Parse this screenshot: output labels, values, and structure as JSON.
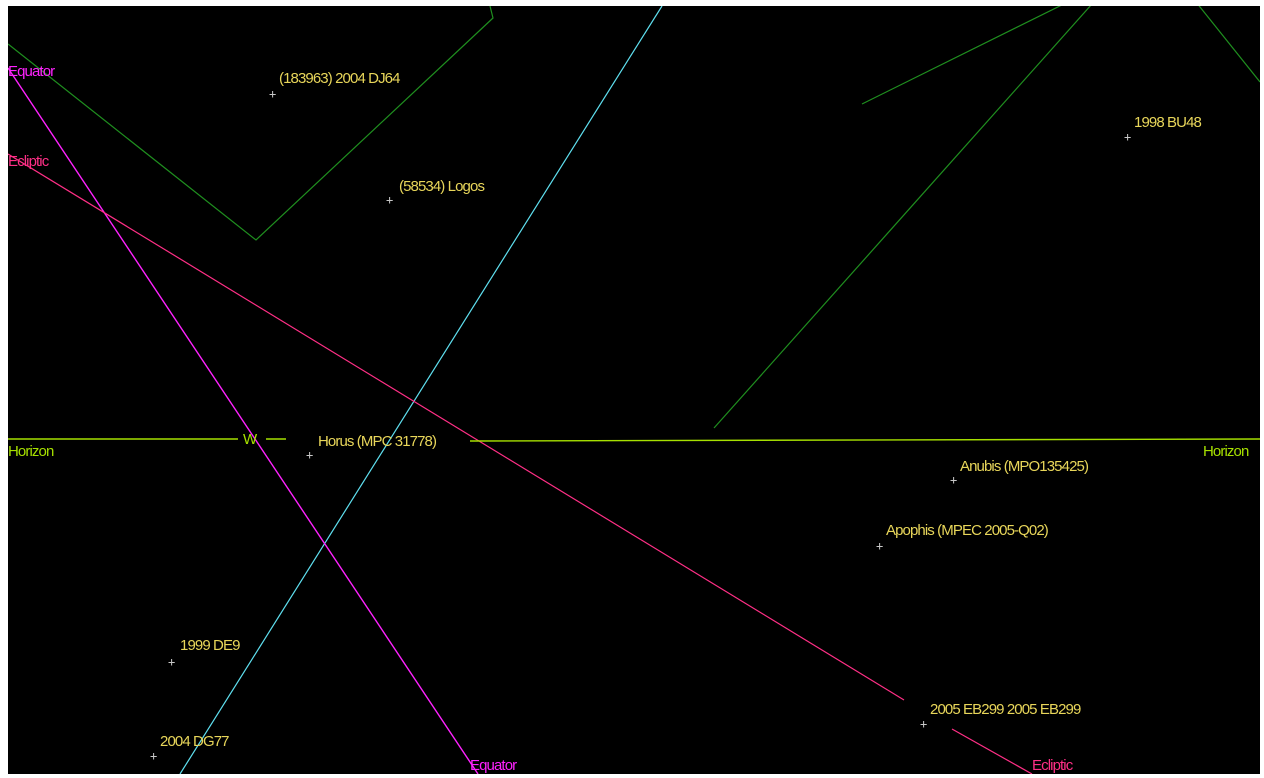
{
  "colors": {
    "background": "#000000",
    "ecliptic": "#ff2f86",
    "equator": "#ff22ff",
    "horizon": "#a6e000",
    "celestial_line": "#5fe0f0",
    "constellation": "#1f8f1f",
    "object_label": "#e8d65a",
    "marker": "#c8c8c8"
  },
  "reference_lines": {
    "equator_top": "Equator",
    "equator_bottom": "Equator",
    "ecliptic_top": "Ecliptic",
    "ecliptic_bottom": "Ecliptic",
    "horizon_left": "Horizon",
    "horizon_right": "Horizon",
    "compass_west": "W"
  },
  "objects": [
    {
      "id": "obj-183963",
      "label": "(183963) 2004 DJ64"
    },
    {
      "id": "obj-58534",
      "label": "(58534) Logos"
    },
    {
      "id": "obj-1998bu48",
      "label": "1998 BU48"
    },
    {
      "id": "obj-horus",
      "label": "Horus (MPC 31778)"
    },
    {
      "id": "obj-anubis",
      "label": "Anubis (MPO135425)"
    },
    {
      "id": "obj-apophis",
      "label": "Apophis (MPEC 2005-Q02)"
    },
    {
      "id": "obj-1999de9",
      "label": "1999 DE9"
    },
    {
      "id": "obj-2005eb299",
      "label": "2005 EB299 2005 EB299"
    },
    {
      "id": "obj-2004dg77",
      "label": "2004 DG77"
    }
  ],
  "marker_glyph": "+"
}
